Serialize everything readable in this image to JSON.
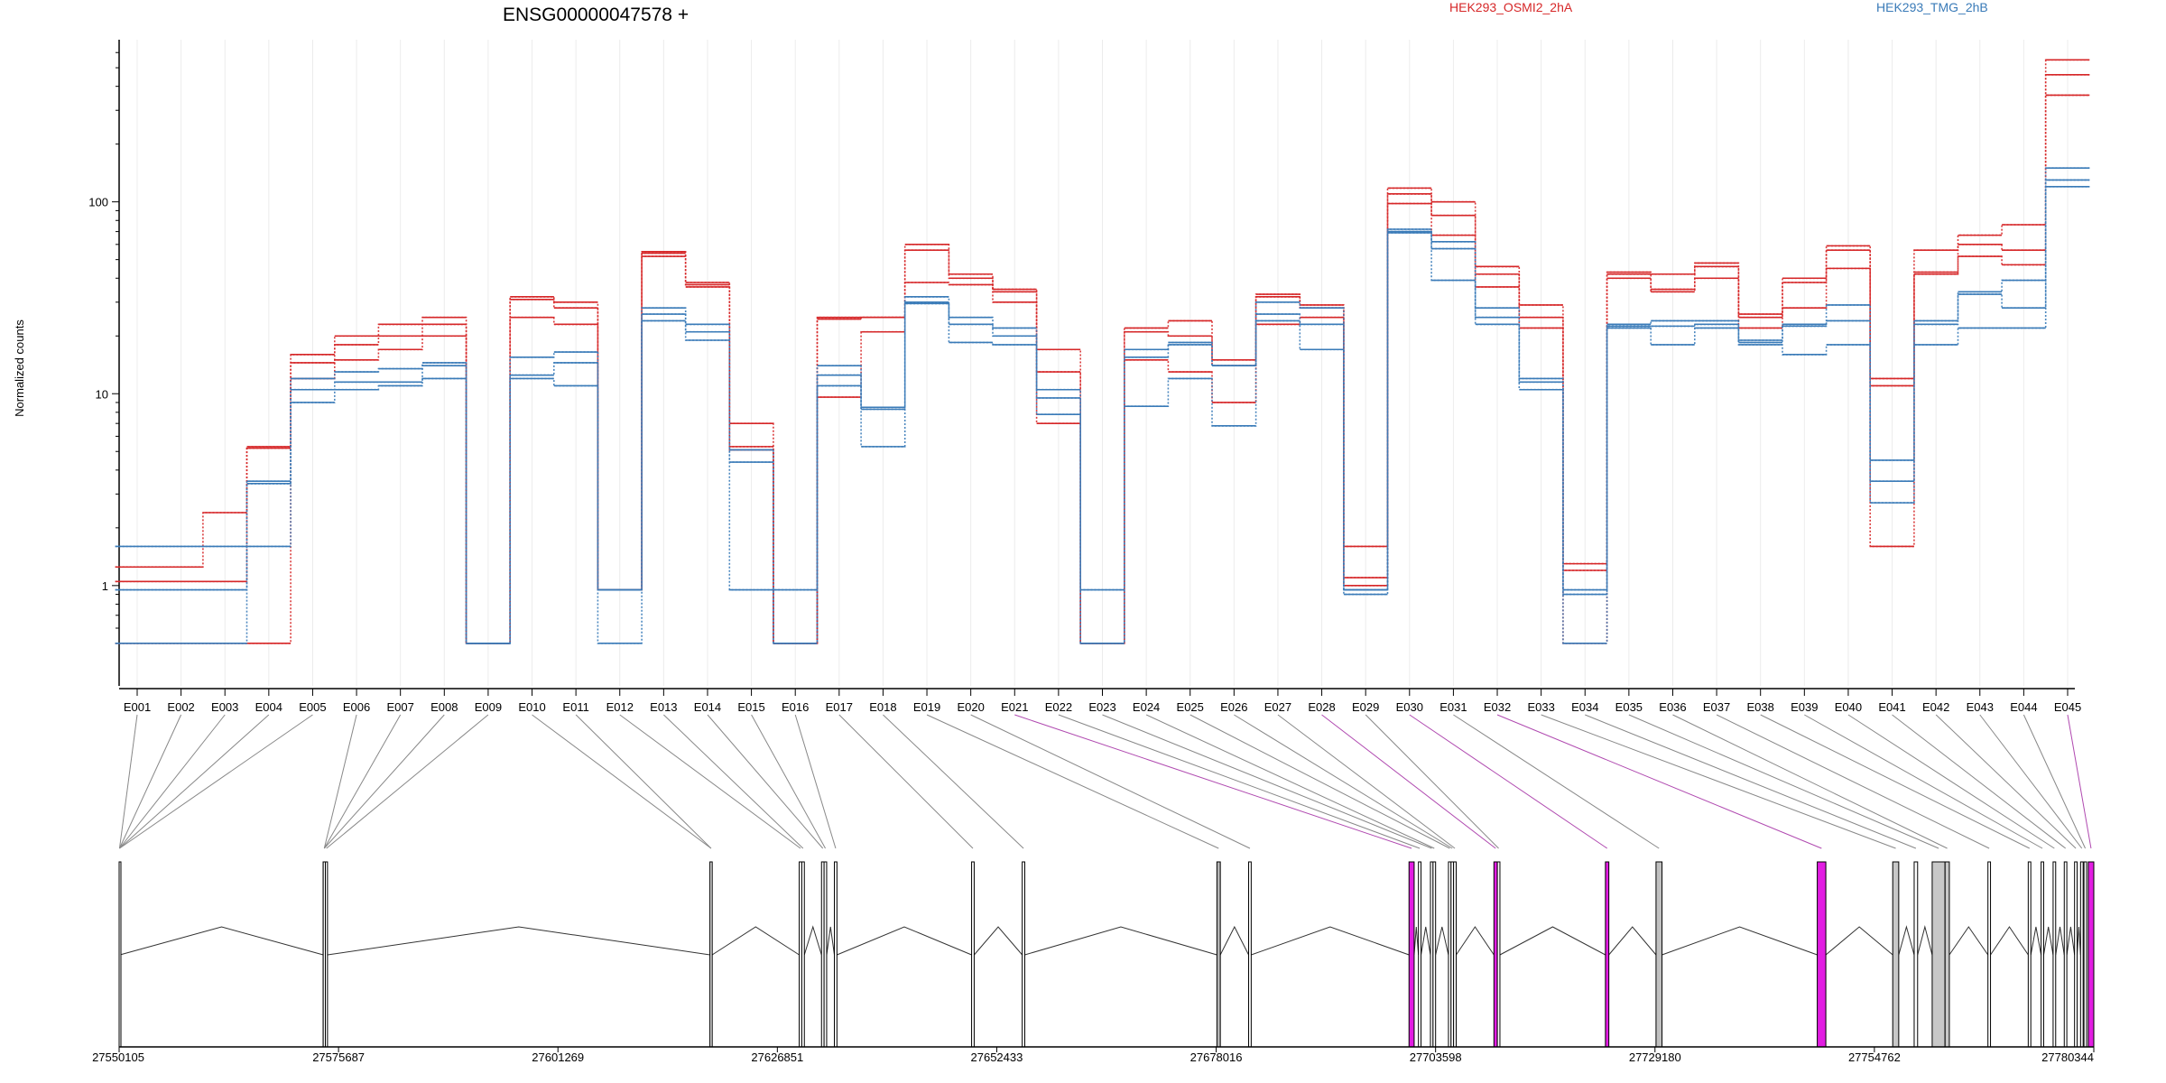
{
  "chart_data": {
    "type": "line",
    "title": "ENSG00000047578 +",
    "ylabel": "Normalized counts",
    "yscale": "log",
    "ylim": [
      0.3,
      700
    ],
    "yticks": [
      1,
      10,
      100
    ],
    "ytick_labels": [
      "1",
      "10",
      "100"
    ],
    "legend_placement": "top",
    "legend": [
      {
        "label": "HEK293_OSMI2_2hA",
        "color": "#d62728"
      },
      {
        "label": "HEK293_TMG_2hB",
        "color": "#3a7bb8"
      }
    ],
    "categories": [
      "E001",
      "E002",
      "E003",
      "E004",
      "E005",
      "E006",
      "E007",
      "E008",
      "E009",
      "E010",
      "E011",
      "E012",
      "E013",
      "E014",
      "E015",
      "E016",
      "E017",
      "E018",
      "E019",
      "E020",
      "E021",
      "E022",
      "E023",
      "E024",
      "E025",
      "E026",
      "E027",
      "E028",
      "E029",
      "E030",
      "E031",
      "E032",
      "E033",
      "E034",
      "E035",
      "E036",
      "E037",
      "E038",
      "E039",
      "E040",
      "E041",
      "E042",
      "E043",
      "E044",
      "E045"
    ],
    "series": [
      {
        "group": "HEK293_OSMI2_2hA",
        "color": "#d62728",
        "values": [
          1.25,
          1.25,
          2.4,
          5.3,
          16,
          20,
          23,
          25,
          0.5,
          32,
          30,
          0.95,
          55,
          38,
          7,
          0.5,
          25,
          25,
          60,
          42,
          35,
          17,
          0.5,
          22,
          24,
          15,
          33,
          29,
          1.6,
          118,
          100,
          46,
          29,
          1.3,
          43,
          42,
          48,
          26,
          40,
          59,
          12,
          56,
          67,
          76,
          550
        ]
      },
      {
        "group": "HEK293_OSMI2_2hA",
        "color": "#d62728",
        "values": [
          1.05,
          1.05,
          1.05,
          5.2,
          14.5,
          18,
          20,
          23,
          0.5,
          31,
          28,
          0.95,
          54,
          37,
          5.3,
          0.5,
          24.5,
          25,
          56,
          40,
          34,
          13,
          0.5,
          21,
          20,
          14,
          32,
          28,
          1.1,
          110,
          85,
          42,
          25,
          1.2,
          42,
          35,
          46,
          25,
          38,
          56,
          11,
          43,
          60,
          56,
          460
        ]
      },
      {
        "group": "HEK293_OSMI2_2hA",
        "color": "#d62728",
        "values": [
          0.5,
          0.5,
          0.5,
          0.5,
          12,
          15,
          17,
          20,
          0.5,
          25,
          23,
          0.95,
          52,
          36,
          5.1,
          0.5,
          9.6,
          21,
          38,
          37,
          30,
          7,
          0.5,
          15,
          13,
          9,
          23,
          25,
          1,
          98,
          67,
          36,
          22,
          0.5,
          40,
          34,
          40,
          22,
          28,
          45,
          1.6,
          42,
          52,
          47,
          360
        ]
      },
      {
        "group": "HEK293_TMG_2hB",
        "color": "#3a7bb8",
        "values": [
          1.6,
          1.6,
          1.6,
          3.5,
          12,
          13,
          13.5,
          14.5,
          0.5,
          15.5,
          16.5,
          0.95,
          28,
          23,
          5.1,
          0.95,
          14,
          8.5,
          32,
          25,
          22,
          10.5,
          0.95,
          17,
          18.5,
          14,
          30,
          28,
          0.95,
          72,
          62,
          28,
          12,
          0.95,
          23,
          24,
          24,
          19,
          23,
          29,
          4.5,
          24,
          34,
          39,
          150
        ]
      },
      {
        "group": "HEK293_TMG_2hB",
        "color": "#3a7bb8",
        "values": [
          0.95,
          0.95,
          0.95,
          3.4,
          10.5,
          11.5,
          11.5,
          14,
          0.5,
          12.5,
          14.5,
          0.95,
          26,
          21,
          4.4,
          0.5,
          12.5,
          8.3,
          30,
          23,
          20,
          9.5,
          0.5,
          15.5,
          18,
          14,
          26,
          23,
          0.95,
          70,
          57,
          25,
          11.5,
          0.9,
          22.5,
          22.5,
          23,
          18.5,
          22.5,
          24,
          3.5,
          23,
          33,
          28,
          130
        ]
      },
      {
        "group": "HEK293_TMG_2hB",
        "color": "#3a7bb8",
        "values": [
          0.5,
          0.5,
          0.5,
          1.6,
          9,
          10.5,
          11,
          12,
          0.5,
          12,
          11,
          0.5,
          24,
          19,
          0.95,
          0.5,
          11,
          5.3,
          29.5,
          18.5,
          18,
          7.8,
          0.5,
          8.6,
          12,
          6.8,
          24,
          17,
          0.9,
          69,
          39,
          23,
          10.5,
          0.5,
          22,
          18,
          22,
          18,
          16,
          18,
          2.7,
          18,
          22,
          22,
          120
        ]
      }
    ],
    "genome_axis": {
      "ticks": [
        27550105,
        27575687,
        27601269,
        27626851,
        27652433,
        27678016,
        27703598,
        27729180,
        27754762,
        27780344
      ],
      "tick_labels": [
        "27550105",
        "27575687",
        "27601269",
        "27626851",
        "27652433",
        "27678016",
        "27703598",
        "27729180",
        "27754762",
        "27780344"
      ],
      "range": [
        27550105,
        27780344
      ]
    },
    "exons": [
      {
        "id": "E001",
        "start": 27550105,
        "end": 27550200,
        "fill": "#ffffff"
      },
      {
        "id": "E002",
        "start": 27550105,
        "end": 27550200,
        "fill": "#ffffff"
      },
      {
        "id": "E003",
        "start": 27550105,
        "end": 27550200,
        "fill": "#ffffff"
      },
      {
        "id": "E004",
        "start": 27550105,
        "end": 27550200,
        "fill": "#ffffff"
      },
      {
        "id": "E005",
        "start": 27550105,
        "end": 27550200,
        "fill": "#ffffff"
      },
      {
        "id": "E006",
        "start": 27573900,
        "end": 27574150,
        "fill": "#ffffff"
      },
      {
        "id": "E007",
        "start": 27573900,
        "end": 27574150,
        "fill": "#ffffff"
      },
      {
        "id": "E008",
        "start": 27573900,
        "end": 27574150,
        "fill": "#ffffff"
      },
      {
        "id": "E009",
        "start": 27574150,
        "end": 27574400,
        "fill": "#ffffff"
      },
      {
        "id": "E010",
        "start": 27619000,
        "end": 27619250,
        "fill": "#ffffff"
      },
      {
        "id": "E011",
        "start": 27619000,
        "end": 27619250,
        "fill": "#ffffff"
      },
      {
        "id": "E012",
        "start": 27629400,
        "end": 27629700,
        "fill": "#ffffff"
      },
      {
        "id": "E013",
        "start": 27629700,
        "end": 27630000,
        "fill": "#ffffff"
      },
      {
        "id": "E014",
        "start": 27632000,
        "end": 27632300,
        "fill": "#ffffff"
      },
      {
        "id": "E015",
        "start": 27632300,
        "end": 27632600,
        "fill": "#ffffff"
      },
      {
        "id": "E016",
        "start": 27633500,
        "end": 27633800,
        "fill": "#ffffff"
      },
      {
        "id": "E017",
        "start": 27649500,
        "end": 27649800,
        "fill": "#ffffff"
      },
      {
        "id": "E018",
        "start": 27655400,
        "end": 27655700,
        "fill": "#ffffff"
      },
      {
        "id": "E019",
        "start": 27678100,
        "end": 27678500,
        "fill": "#b5b5b5"
      },
      {
        "id": "E020",
        "start": 27681800,
        "end": 27682100,
        "fill": "#ffffff"
      },
      {
        "id": "E021",
        "start": 27700500,
        "end": 27701100,
        "fill": "#e21de2"
      },
      {
        "id": "E022",
        "start": 27701600,
        "end": 27701900,
        "fill": "#ffffff"
      },
      {
        "id": "E023",
        "start": 27703000,
        "end": 27703300,
        "fill": "#ffffff"
      },
      {
        "id": "E024",
        "start": 27703300,
        "end": 27703600,
        "fill": "#ffffff"
      },
      {
        "id": "E025",
        "start": 27705100,
        "end": 27705400,
        "fill": "#ffffff"
      },
      {
        "id": "E026",
        "start": 27705400,
        "end": 27705700,
        "fill": "#ffffff"
      },
      {
        "id": "E027",
        "start": 27705700,
        "end": 27706000,
        "fill": "#ffffff"
      },
      {
        "id": "E028",
        "start": 27710400,
        "end": 27710800,
        "fill": "#e21de2"
      },
      {
        "id": "E029",
        "start": 27710800,
        "end": 27711100,
        "fill": "#ffffff"
      },
      {
        "id": "E030",
        "start": 27723400,
        "end": 27723800,
        "fill": "#e21de2"
      },
      {
        "id": "E031",
        "start": 27729300,
        "end": 27730000,
        "fill": "#c0c0c0"
      },
      {
        "id": "E032",
        "start": 27748100,
        "end": 27749100,
        "fill": "#e21de2"
      },
      {
        "id": "E033",
        "start": 27756900,
        "end": 27757600,
        "fill": "#c8c8c8"
      },
      {
        "id": "E034",
        "start": 27759400,
        "end": 27759800,
        "fill": "#ffffff"
      },
      {
        "id": "E035",
        "start": 27761500,
        "end": 27763000,
        "fill": "#c8c8c8"
      },
      {
        "id": "E036",
        "start": 27763000,
        "end": 27763500,
        "fill": "#c8c8c8"
      },
      {
        "id": "E037",
        "start": 27768000,
        "end": 27768300,
        "fill": "#ffffff"
      },
      {
        "id": "E038",
        "start": 27772700,
        "end": 27773000,
        "fill": "#ffffff"
      },
      {
        "id": "E039",
        "start": 27774200,
        "end": 27774500,
        "fill": "#ffffff"
      },
      {
        "id": "E040",
        "start": 27775600,
        "end": 27775900,
        "fill": "#ffffff"
      },
      {
        "id": "E041",
        "start": 27776900,
        "end": 27777200,
        "fill": "#ffffff"
      },
      {
        "id": "E042",
        "start": 27778100,
        "end": 27778400,
        "fill": "#ffffff"
      },
      {
        "id": "E043",
        "start": 27778800,
        "end": 27779100,
        "fill": "#ffffff"
      },
      {
        "id": "E044",
        "start": 27779200,
        "end": 27779500,
        "fill": "#ffffff"
      },
      {
        "id": "E045",
        "start": 27779700,
        "end": 27780344,
        "fill": "#e21de2"
      }
    ],
    "connector_colors": {
      "default": "#888888",
      "highlight": "#b04ab0"
    },
    "highlighted_connectors": [
      "E021",
      "E028",
      "E030",
      "E032",
      "E045"
    ]
  }
}
